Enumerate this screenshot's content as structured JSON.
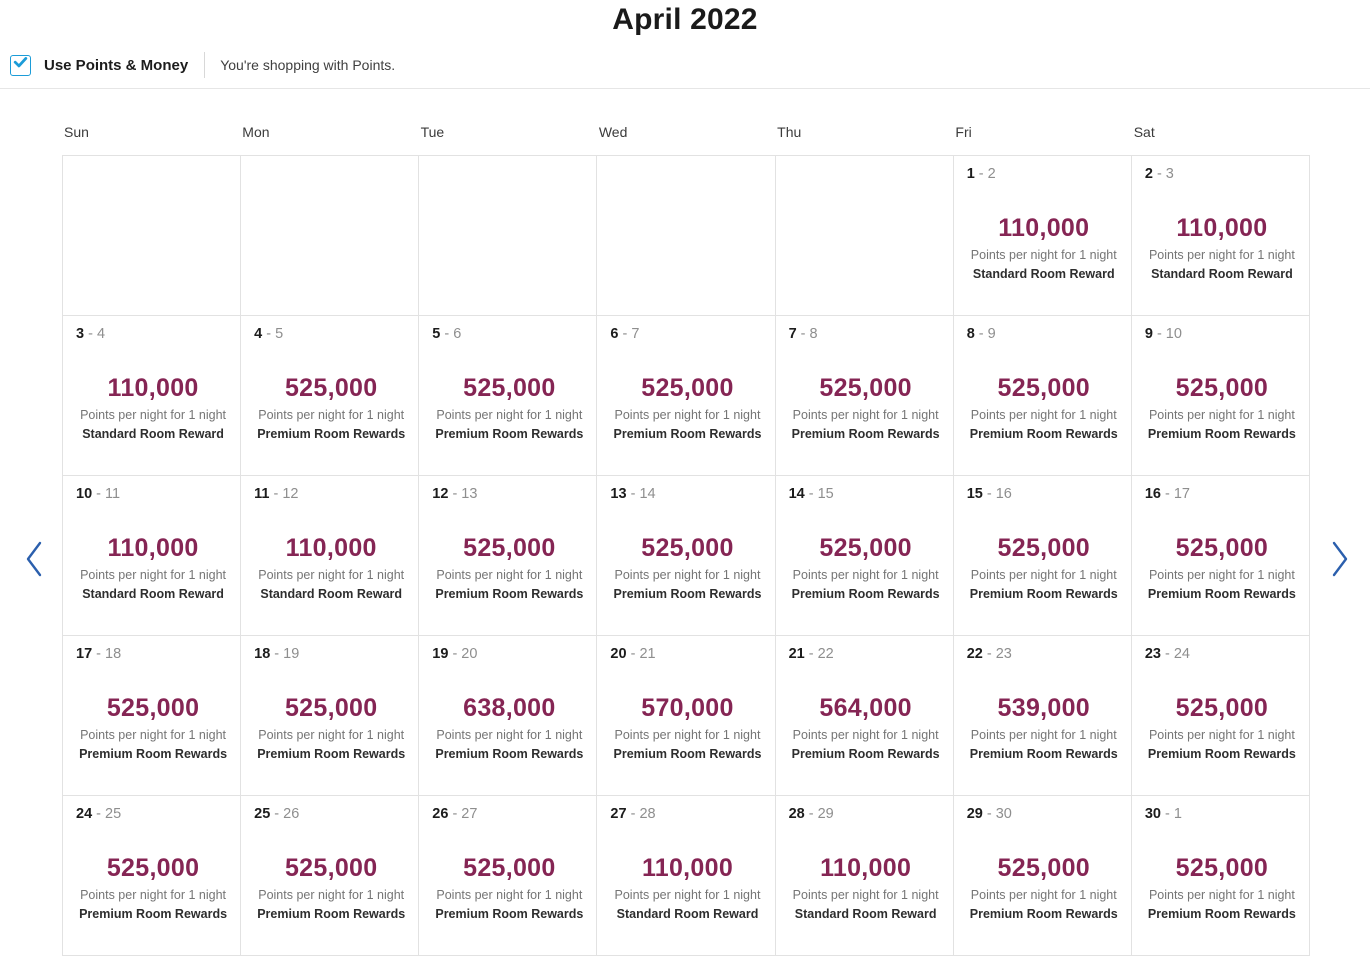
{
  "header": {
    "title": "April 2022"
  },
  "controls": {
    "checkbox_label": "Use Points & Money",
    "checkbox_checked": true,
    "status_text": "You're shopping with Points."
  },
  "calendar": {
    "day_headers": [
      "Sun",
      "Mon",
      "Tue",
      "Wed",
      "Thu",
      "Fri",
      "Sat"
    ],
    "per_night_text": "Points per night for 1 night",
    "cells": [
      {
        "empty": true
      },
      {
        "empty": true
      },
      {
        "empty": true
      },
      {
        "empty": true
      },
      {
        "empty": true
      },
      {
        "start": "1",
        "end": "2",
        "points": "110,000",
        "room": "Standard Room Reward"
      },
      {
        "start": "2",
        "end": "3",
        "points": "110,000",
        "room": "Standard Room Reward"
      },
      {
        "start": "3",
        "end": "4",
        "points": "110,000",
        "room": "Standard Room Reward"
      },
      {
        "start": "4",
        "end": "5",
        "points": "525,000",
        "room": "Premium Room Rewards"
      },
      {
        "start": "5",
        "end": "6",
        "points": "525,000",
        "room": "Premium Room Rewards"
      },
      {
        "start": "6",
        "end": "7",
        "points": "525,000",
        "room": "Premium Room Rewards"
      },
      {
        "start": "7",
        "end": "8",
        "points": "525,000",
        "room": "Premium Room Rewards"
      },
      {
        "start": "8",
        "end": "9",
        "points": "525,000",
        "room": "Premium Room Rewards"
      },
      {
        "start": "9",
        "end": "10",
        "points": "525,000",
        "room": "Premium Room Rewards"
      },
      {
        "start": "10",
        "end": "11",
        "points": "110,000",
        "room": "Standard Room Reward"
      },
      {
        "start": "11",
        "end": "12",
        "points": "110,000",
        "room": "Standard Room Reward"
      },
      {
        "start": "12",
        "end": "13",
        "points": "525,000",
        "room": "Premium Room Rewards"
      },
      {
        "start": "13",
        "end": "14",
        "points": "525,000",
        "room": "Premium Room Rewards"
      },
      {
        "start": "14",
        "end": "15",
        "points": "525,000",
        "room": "Premium Room Rewards"
      },
      {
        "start": "15",
        "end": "16",
        "points": "525,000",
        "room": "Premium Room Rewards"
      },
      {
        "start": "16",
        "end": "17",
        "points": "525,000",
        "room": "Premium Room Rewards"
      },
      {
        "start": "17",
        "end": "18",
        "points": "525,000",
        "room": "Premium Room Rewards"
      },
      {
        "start": "18",
        "end": "19",
        "points": "525,000",
        "room": "Premium Room Rewards"
      },
      {
        "start": "19",
        "end": "20",
        "points": "638,000",
        "room": "Premium Room Rewards"
      },
      {
        "start": "20",
        "end": "21",
        "points": "570,000",
        "room": "Premium Room Rewards"
      },
      {
        "start": "21",
        "end": "22",
        "points": "564,000",
        "room": "Premium Room Rewards"
      },
      {
        "start": "22",
        "end": "23",
        "points": "539,000",
        "room": "Premium Room Rewards"
      },
      {
        "start": "23",
        "end": "24",
        "points": "525,000",
        "room": "Premium Room Rewards"
      },
      {
        "start": "24",
        "end": "25",
        "points": "525,000",
        "room": "Premium Room Rewards"
      },
      {
        "start": "25",
        "end": "26",
        "points": "525,000",
        "room": "Premium Room Rewards"
      },
      {
        "start": "26",
        "end": "27",
        "points": "525,000",
        "room": "Premium Room Rewards"
      },
      {
        "start": "27",
        "end": "28",
        "points": "110,000",
        "room": "Standard Room Reward"
      },
      {
        "start": "28",
        "end": "29",
        "points": "110,000",
        "room": "Standard Room Reward"
      },
      {
        "start": "29",
        "end": "30",
        "points": "525,000",
        "room": "Premium Room Rewards"
      },
      {
        "start": "30",
        "end": "1",
        "points": "525,000",
        "room": "Premium Room Rewards"
      }
    ]
  },
  "nav": {
    "prev_icon": "chevron-left",
    "next_icon": "chevron-right"
  },
  "colors": {
    "points_value": "#852554",
    "checkbox_blue": "#1c9cd8",
    "nav_arrow_blue": "#2b5fad",
    "grid_border": "#e2e2e2"
  }
}
